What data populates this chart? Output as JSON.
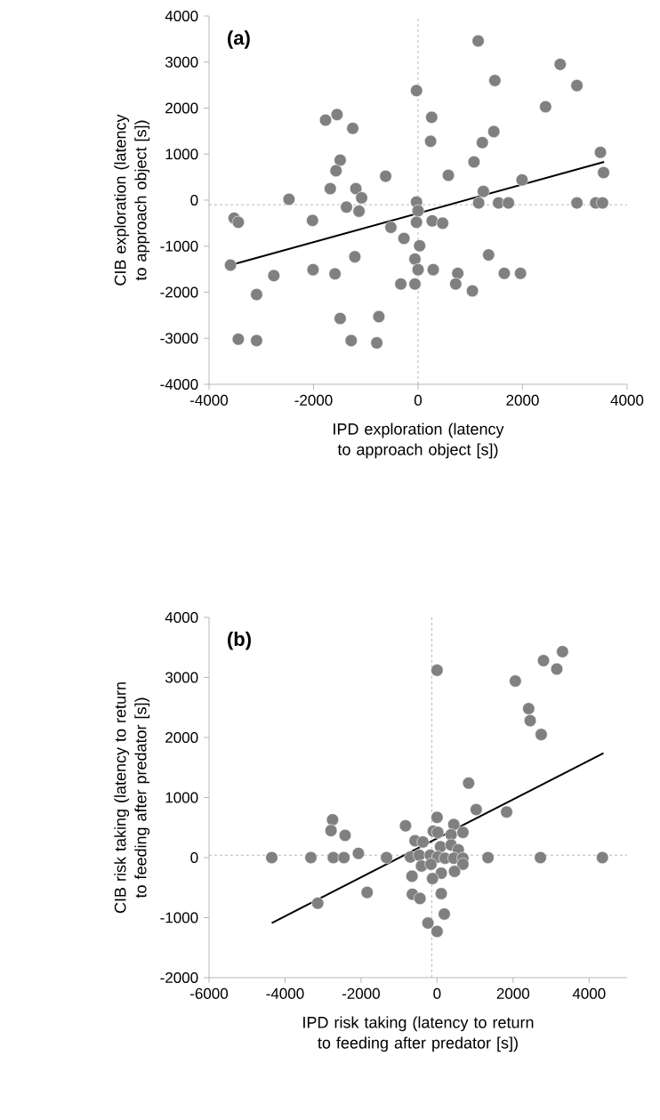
{
  "chart_data": [
    {
      "type": "scatter",
      "xlabel": "IPD exploration (latency to approach object [s])",
      "ylabel": "CIB exploration (latency to approach object [s])",
      "annotations": [
        "(a)"
      ],
      "xlim": [
        -4000,
        4000
      ],
      "xticks": [
        -4000,
        -2000,
        0,
        2000,
        4000
      ],
      "ylim": [
        -4000,
        4000
      ],
      "yticks": [
        -4000,
        -3000,
        -2000,
        -1000,
        0,
        1000,
        2000,
        3000,
        4000
      ],
      "ref_lines": [
        {
          "axis": "x",
          "value": 0,
          "color": "#a6a6a6",
          "line_style": "dashed"
        },
        {
          "axis": "y",
          "value": -100,
          "color": "#a6a6a6",
          "line_style": "dashed"
        }
      ],
      "series": [
        {
          "color": "#808080",
          "marker": "circle",
          "x": [
            1150,
            -30,
            2720,
            1470,
            3040,
            2440,
            -1770,
            -1550,
            -1250,
            260,
            240,
            1450,
            1230,
            1070,
            3490,
            3550,
            -1490,
            -1570,
            -620,
            580,
            -1680,
            -1190,
            1990,
            1250,
            -2470,
            -1080,
            -1370,
            -1130,
            -30,
            0,
            1160,
            1540,
            1730,
            3040,
            3400,
            3530,
            -3520,
            -3440,
            -2020,
            -30,
            270,
            470,
            -520,
            -270,
            30,
            -60,
            0,
            290,
            -1210,
            -2010,
            -1590,
            -2760,
            -3590,
            -3090,
            -330,
            -60,
            760,
            720,
            1040,
            1350,
            1650,
            1960,
            -1490,
            -750,
            -3440,
            -3090,
            -1280,
            -790
          ],
          "values": [
            3460,
            2380,
            2950,
            2600,
            2490,
            2030,
            1740,
            1860,
            1560,
            1800,
            1280,
            1490,
            1250,
            830,
            1040,
            600,
            870,
            640,
            520,
            540,
            250,
            250,
            440,
            190,
            20,
            50,
            -150,
            -240,
            -40,
            -230,
            -60,
            -60,
            -60,
            -60,
            -60,
            -60,
            -390,
            -480,
            -440,
            -480,
            -450,
            -500,
            -590,
            -830,
            -990,
            -1280,
            -1510,
            -1510,
            -1230,
            -1510,
            -1600,
            -1640,
            -1410,
            -2050,
            -1820,
            -1820,
            -1590,
            -1820,
            -1970,
            -1190,
            -1590,
            -1590,
            -2570,
            -2530,
            -3020,
            -3050,
            -3050,
            -3100
          ]
        },
        {
          "type": "line",
          "color": "#000000",
          "marker": "none",
          "x": [
            -3590,
            3560
          ],
          "values": [
            -1410,
            830
          ]
        }
      ]
    },
    {
      "type": "scatter",
      "xlabel": "IPD risk taking (latency to return to feeding after predator [s])",
      "ylabel": "CIB risk taking (latency to return to feeding after predator [s])",
      "annotations": [
        "(b)"
      ],
      "xlim": [
        -6000,
        5000
      ],
      "xticks": [
        -6000,
        -4000,
        -2000,
        0,
        2000,
        4000
      ],
      "ylim": [
        -2000,
        4000
      ],
      "yticks": [
        -2000,
        -1000,
        0,
        1000,
        2000,
        3000,
        4000
      ],
      "ref_lines": [
        {
          "axis": "x",
          "value": -140,
          "color": "#a6a6a6",
          "line_style": "dashed"
        },
        {
          "axis": "y",
          "value": 40,
          "color": "#a6a6a6",
          "line_style": "dashed"
        }
      ],
      "series": [
        {
          "color": "#808080",
          "marker": "circle",
          "x": [
            0,
            3300,
            2800,
            3150,
            2060,
            2410,
            2450,
            2740,
            830,
            1030,
            1830,
            -4350,
            -3320,
            -2750,
            -2790,
            -2420,
            -2730,
            -2450,
            -2070,
            -1330,
            -1840,
            -3140,
            -830,
            1340,
            2720,
            4350,
            0,
            440,
            -580,
            -100,
            20,
            370,
            680,
            -370,
            90,
            370,
            560,
            -700,
            -470,
            -180,
            20,
            210,
            440,
            680,
            -410,
            -160,
            680,
            460,
            110,
            -120,
            -660,
            -650,
            -450,
            110,
            190,
            -240,
            0
          ],
          "values": [
            3120,
            3430,
            3280,
            3140,
            2940,
            2480,
            2280,
            2050,
            1240,
            800,
            760,
            0,
            0,
            630,
            450,
            370,
            0,
            0,
            70,
            0,
            -580,
            -760,
            530,
            0,
            0,
            0,
            670,
            550,
            280,
            440,
            420,
            380,
            420,
            260,
            180,
            210,
            130,
            10,
            40,
            40,
            10,
            -10,
            -10,
            -10,
            -140,
            -110,
            -110,
            -230,
            -260,
            -350,
            -310,
            -610,
            -680,
            -600,
            -940,
            -1090,
            -1230
          ]
        },
        {
          "type": "line",
          "color": "#000000",
          "marker": "none",
          "x": [
            -4350,
            4380
          ],
          "values": [
            -1090,
            1740
          ]
        }
      ]
    }
  ]
}
